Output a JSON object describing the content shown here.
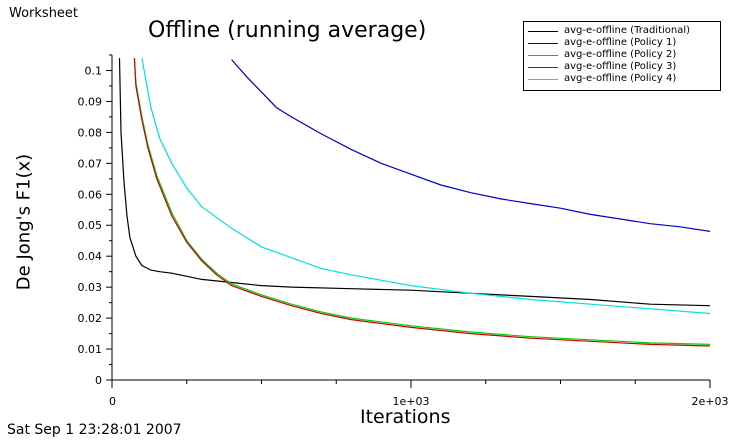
{
  "header": {
    "worksheet_label": "Worksheet",
    "timestamp": "Sat Sep 1 23:28:01 2007"
  },
  "chart_data": {
    "type": "line",
    "title": "Offline (running average)",
    "xlabel": "Iterations",
    "ylabel": "De Jong's F1(x)",
    "xlim": [
      0,
      2000
    ],
    "ylim": [
      0,
      0.105
    ],
    "x_ticks": [
      {
        "value": 0,
        "label": "0"
      },
      {
        "value": 1000,
        "label": "1e+03"
      },
      {
        "value": 2000,
        "label": "2e+03"
      }
    ],
    "y_ticks": [
      {
        "value": 0,
        "label": "0"
      },
      {
        "value": 0.01,
        "label": "0.01"
      },
      {
        "value": 0.02,
        "label": "0.02"
      },
      {
        "value": 0.03,
        "label": "0.03"
      },
      {
        "value": 0.04,
        "label": "0.04"
      },
      {
        "value": 0.05,
        "label": "0.05"
      },
      {
        "value": 0.06,
        "label": "0.06"
      },
      {
        "value": 0.07,
        "label": "0.07"
      },
      {
        "value": 0.08,
        "label": "0.08"
      },
      {
        "value": 0.09,
        "label": "0.09"
      },
      {
        "value": 0.1,
        "label": "0.1"
      }
    ],
    "legend_position": "top-right",
    "grid": false,
    "series": [
      {
        "name": "avg-e-offline (Traditional)",
        "color": "#000000",
        "x": [
          25,
          30,
          40,
          50,
          60,
          80,
          100,
          130,
          160,
          200,
          300,
          400,
          500,
          600,
          800,
          1000,
          1200,
          1400,
          1600,
          1800,
          2000
        ],
        "y": [
          0.104,
          0.08,
          0.064,
          0.053,
          0.046,
          0.04,
          0.037,
          0.0355,
          0.035,
          0.0345,
          0.0325,
          0.0315,
          0.0305,
          0.03,
          0.0295,
          0.029,
          0.028,
          0.027,
          0.026,
          0.0245,
          0.024
        ]
      },
      {
        "name": "avg-e-offline (Policy 1)",
        "color": "#0000cc",
        "x": [
          400,
          450,
          500,
          550,
          600,
          700,
          800,
          900,
          1000,
          1100,
          1200,
          1300,
          1400,
          1500,
          1600,
          1700,
          1800,
          1900,
          2000
        ],
        "y": [
          0.1035,
          0.098,
          0.093,
          0.088,
          0.085,
          0.0795,
          0.0745,
          0.07,
          0.0665,
          0.063,
          0.0605,
          0.0585,
          0.057,
          0.0555,
          0.0535,
          0.052,
          0.0505,
          0.0495,
          0.048
        ]
      },
      {
        "name": "avg-e-offline (Policy 2)",
        "color": "#00cc00",
        "x": [
          75,
          80,
          100,
          120,
          150,
          200,
          250,
          300,
          350,
          400,
          500,
          600,
          700,
          800,
          1000,
          1200,
          1400,
          1600,
          1800,
          2000
        ],
        "y": [
          0.104,
          0.096,
          0.085,
          0.076,
          0.066,
          0.054,
          0.045,
          0.039,
          0.0345,
          0.031,
          0.0275,
          0.0245,
          0.022,
          0.02,
          0.0175,
          0.0155,
          0.014,
          0.013,
          0.012,
          0.0115
        ]
      },
      {
        "name": "avg-e-offline (Policy 3)",
        "color": "#cc0000",
        "x": [
          75,
          80,
          100,
          120,
          150,
          200,
          250,
          300,
          350,
          400,
          500,
          600,
          700,
          800,
          1000,
          1200,
          1400,
          1600,
          1800,
          2000
        ],
        "y": [
          0.104,
          0.095,
          0.084,
          0.075,
          0.065,
          0.053,
          0.0445,
          0.0385,
          0.034,
          0.0305,
          0.027,
          0.024,
          0.0215,
          0.0195,
          0.017,
          0.015,
          0.0135,
          0.0125,
          0.0115,
          0.011
        ]
      },
      {
        "name": "avg-e-offline (Policy 4)",
        "color": "#00e0e0",
        "x": [
          100,
          130,
          160,
          200,
          250,
          300,
          400,
          500,
          600,
          700,
          800,
          1000,
          1200,
          1400,
          1600,
          1800,
          2000
        ],
        "y": [
          0.104,
          0.088,
          0.078,
          0.07,
          0.062,
          0.056,
          0.049,
          0.043,
          0.0395,
          0.036,
          0.034,
          0.0305,
          0.028,
          0.026,
          0.0245,
          0.023,
          0.0215
        ]
      }
    ]
  }
}
